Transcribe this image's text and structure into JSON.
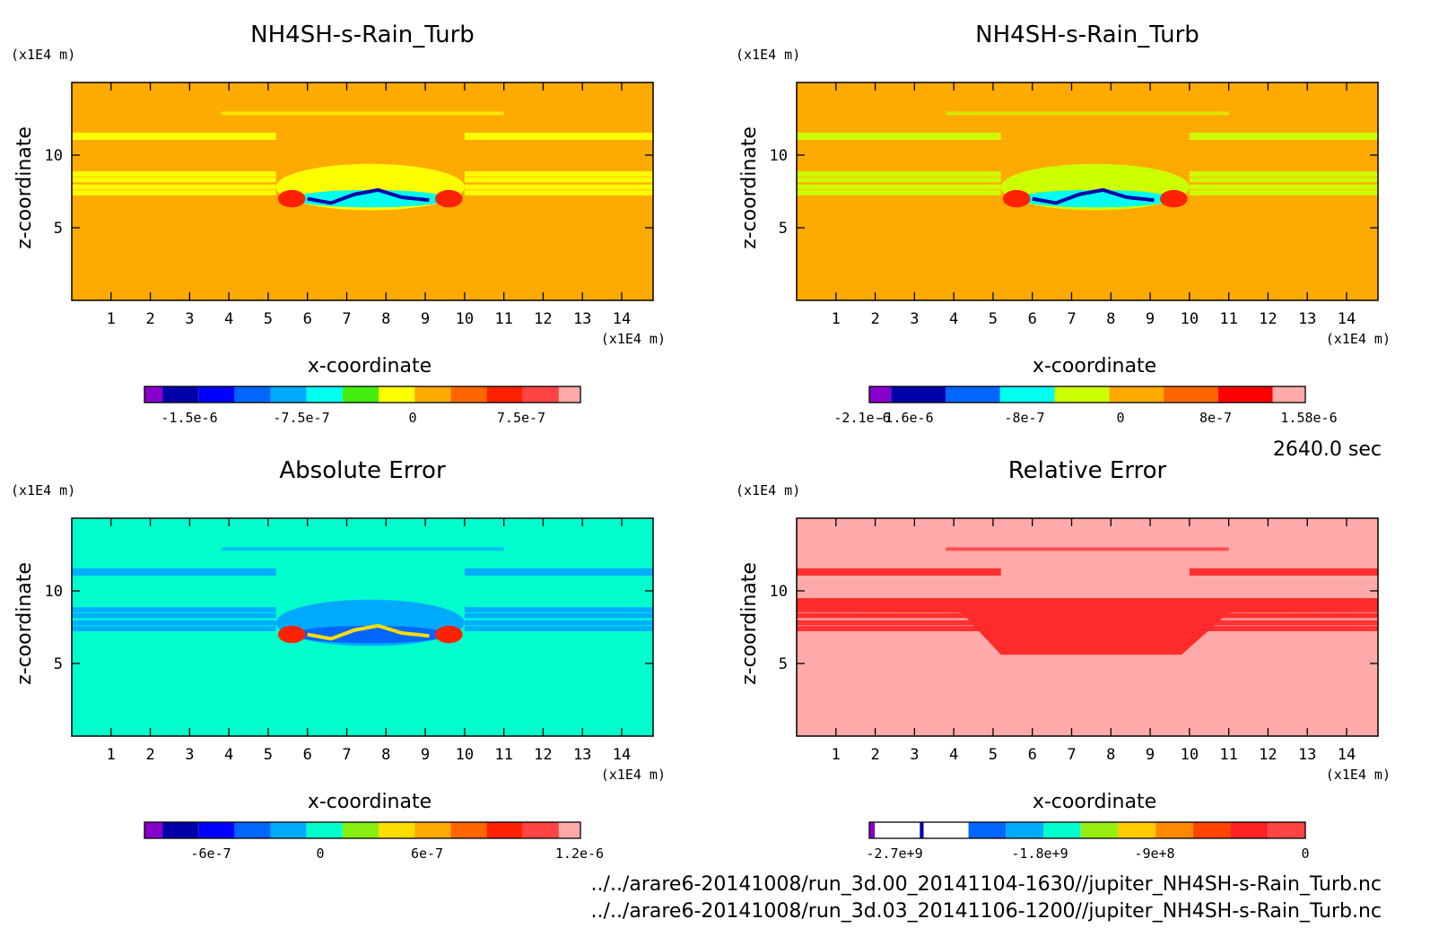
{
  "time_label": "2640.0 sec",
  "file_lines": [
    "../../arare6-20141008/run_3d.00_20141104-1630//jupiter_NH4SH-s-Rain_Turb.nc",
    "../../arare6-20141008/run_3d.03_20141106-1200//jupiter_NH4SH-s-Rain_Turb.nc"
  ],
  "chart_data": [
    {
      "type": "heatmap",
      "title": "NH4SH-s-Rain_Turb",
      "xlabel": "x-coordinate",
      "ylabel": "z-coordinate",
      "x_unit": "(×1E4 m)",
      "y_unit": "(×1E4 m)",
      "xlim": [
        0,
        14.8
      ],
      "ylim": [
        0,
        15
      ],
      "x_ticks": [
        "1",
        "2",
        "3",
        "4",
        "5",
        "6",
        "7",
        "8",
        "9",
        "10",
        "11",
        "12",
        "13",
        "14"
      ],
      "y_ticks": [
        "5",
        "10"
      ],
      "background_color": "#ffaa00",
      "colorbar": {
        "colors": [
          "#8800cc",
          "#0000aa",
          "#0000ff",
          "#0066ff",
          "#00aaff",
          "#00ffee",
          "#44ee11",
          "#ffff00",
          "#ffaa00",
          "#ff6600",
          "#ff2200",
          "#ff4444",
          "#ffaaaa"
        ],
        "tick_labels": [
          "-1.5e-6",
          "-7.5e-7",
          "0",
          "7.5e-7"
        ]
      },
      "bands_color": "#ffff00"
    },
    {
      "type": "heatmap",
      "title": "NH4SH-s-Rain_Turb",
      "xlabel": "x-coordinate",
      "ylabel": "z-coordinate",
      "x_unit": "(×1E4 m)",
      "y_unit": "(×1E4 m)",
      "xlim": [
        0,
        14.8
      ],
      "ylim": [
        0,
        15
      ],
      "x_ticks": [
        "1",
        "2",
        "3",
        "4",
        "5",
        "6",
        "7",
        "8",
        "9",
        "10",
        "11",
        "12",
        "13",
        "14"
      ],
      "y_ticks": [
        "5",
        "10"
      ],
      "background_color": "#ffaa00",
      "colorbar": {
        "colors": [
          "#8800cc",
          "#0000aa",
          "#0066ff",
          "#00ffee",
          "#ccff00",
          "#ffaa00",
          "#ff6600",
          "#ff0000",
          "#ffaaaa"
        ],
        "tick_labels": [
          "-2.1e-6",
          "-1.6e-6",
          "-8e-7",
          "0",
          "8e-7",
          "1.58e-6"
        ]
      },
      "bands_color": "#ccff00"
    },
    {
      "type": "heatmap",
      "title": "Absolute Error",
      "xlabel": "x-coordinate",
      "ylabel": "z-coordinate",
      "x_unit": "(×1E4 m)",
      "y_unit": "(×1E4 m)",
      "xlim": [
        0,
        14.8
      ],
      "ylim": [
        0,
        15
      ],
      "x_ticks": [
        "1",
        "2",
        "3",
        "4",
        "5",
        "6",
        "7",
        "8",
        "9",
        "10",
        "11",
        "12",
        "13",
        "14"
      ],
      "y_ticks": [
        "5",
        "10"
      ],
      "background_color": "#00ffcc",
      "colorbar": {
        "colors": [
          "#8800cc",
          "#0000aa",
          "#0000ff",
          "#0066ff",
          "#00aaff",
          "#00ffcc",
          "#88ee11",
          "#ffdd00",
          "#ffaa00",
          "#ff6600",
          "#ff2200",
          "#ff4444",
          "#ffaaaa"
        ],
        "tick_labels": [
          "-6e-7",
          "0",
          "6e-7",
          "1.2e-6"
        ]
      },
      "bands_color": "#00aaff"
    },
    {
      "type": "heatmap",
      "title": "Relative Error",
      "xlabel": "x-coordinate",
      "ylabel": "z-coordinate",
      "x_unit": "(×1E4 m)",
      "y_unit": "(×1E4 m)",
      "xlim": [
        0,
        14.8
      ],
      "ylim": [
        0,
        15
      ],
      "x_ticks": [
        "1",
        "2",
        "3",
        "4",
        "5",
        "6",
        "7",
        "8",
        "9",
        "10",
        "11",
        "12",
        "13",
        "14"
      ],
      "y_ticks": [
        "5",
        "10"
      ],
      "background_color": "#ffaaaa",
      "colorbar": {
        "colors": [
          "#8800cc",
          "#ffffff",
          "#0000aa",
          "#ffffff",
          "#0066ff",
          "#00aaff",
          "#00ffcc",
          "#99ee11",
          "#ffcc00",
          "#ff8800",
          "#ff4400",
          "#ff2222",
          "#ff4444"
        ],
        "tick_labels": [
          "-2.7e+9",
          "-1.8e+9",
          "-9e+8",
          "0"
        ]
      },
      "bands_color": "#ff2a2a"
    }
  ]
}
